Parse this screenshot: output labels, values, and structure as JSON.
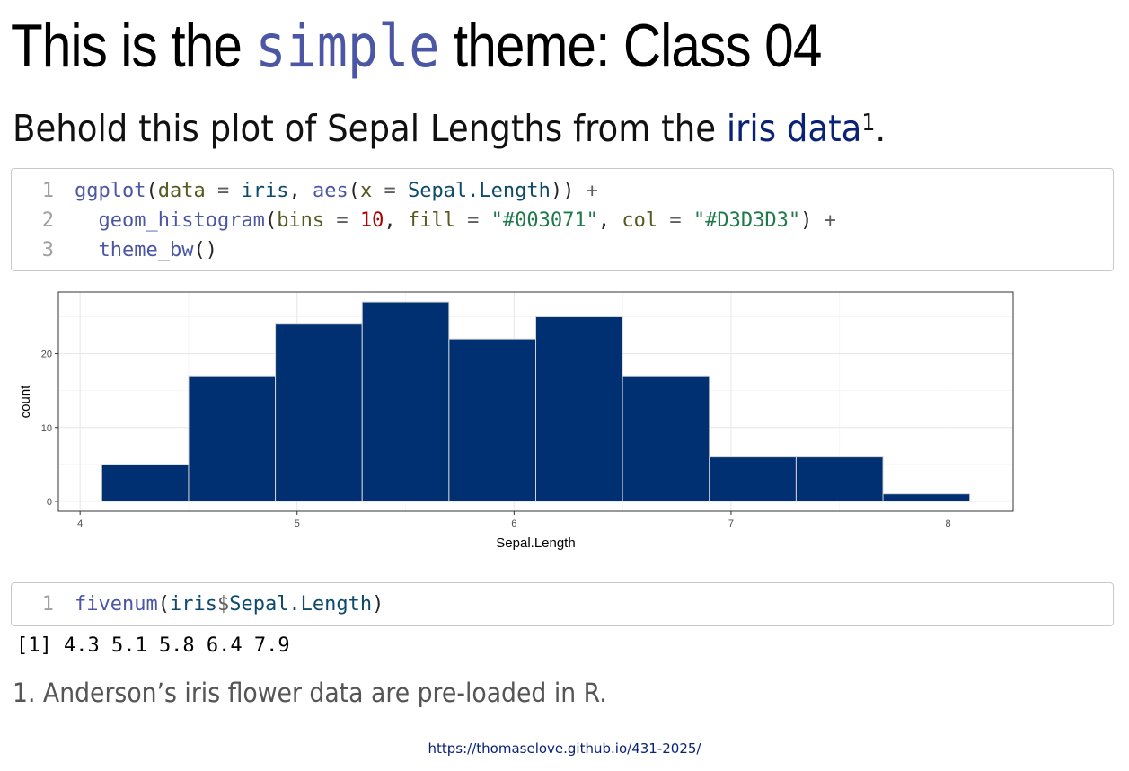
{
  "title": {
    "prefix": "This is the ",
    "code": "simple",
    "suffix": " theme: Class 04"
  },
  "subtitle": {
    "text": "Behold this plot of Sepal Lengths from the ",
    "link": "iris data",
    "footnote_ref": "1",
    "end": "."
  },
  "code_block_1": {
    "lines": [
      {
        "num": "1",
        "tokens": [
          {
            "t": "fn",
            "v": "ggplot"
          },
          {
            "t": "pun",
            "v": "("
          },
          {
            "t": "arg",
            "v": "data"
          },
          {
            "t": "op",
            "v": " = "
          },
          {
            "t": "id",
            "v": "iris"
          },
          {
            "t": "pun",
            "v": ", "
          },
          {
            "t": "fn",
            "v": "aes"
          },
          {
            "t": "pun",
            "v": "("
          },
          {
            "t": "arg",
            "v": "x"
          },
          {
            "t": "op",
            "v": " = "
          },
          {
            "t": "id",
            "v": "Sepal.Length"
          },
          {
            "t": "pun",
            "v": ")) "
          },
          {
            "t": "op",
            "v": "+"
          }
        ]
      },
      {
        "num": "2",
        "tokens": [
          {
            "t": "pun",
            "v": "  "
          },
          {
            "t": "fn",
            "v": "geom_histogram"
          },
          {
            "t": "pun",
            "v": "("
          },
          {
            "t": "arg",
            "v": "bins"
          },
          {
            "t": "op",
            "v": " = "
          },
          {
            "t": "num",
            "v": "10"
          },
          {
            "t": "pun",
            "v": ", "
          },
          {
            "t": "arg",
            "v": "fill"
          },
          {
            "t": "op",
            "v": " = "
          },
          {
            "t": "str",
            "v": "\"#003071\""
          },
          {
            "t": "pun",
            "v": ", "
          },
          {
            "t": "arg",
            "v": "col"
          },
          {
            "t": "op",
            "v": " = "
          },
          {
            "t": "str",
            "v": "\"#D3D3D3\""
          },
          {
            "t": "pun",
            "v": ") "
          },
          {
            "t": "op",
            "v": "+"
          }
        ]
      },
      {
        "num": "3",
        "tokens": [
          {
            "t": "pun",
            "v": "  "
          },
          {
            "t": "fn",
            "v": "theme_bw"
          },
          {
            "t": "pun",
            "v": "()"
          }
        ]
      }
    ]
  },
  "code_block_2": {
    "lines": [
      {
        "num": "1",
        "tokens": [
          {
            "t": "fn",
            "v": "fivenum"
          },
          {
            "t": "pun",
            "v": "("
          },
          {
            "t": "id",
            "v": "iris"
          },
          {
            "t": "op",
            "v": "$"
          },
          {
            "t": "id",
            "v": "Sepal.Length"
          },
          {
            "t": "pun",
            "v": ")"
          }
        ]
      }
    ]
  },
  "output": "[1] 4.3 5.1 5.8 6.4 7.9",
  "footnote": "1. Anderson’s iris flower data are pre-loaded in R.",
  "footer_url": "https://thomaselove.github.io/431-2025/",
  "colors": {
    "bar_fill": "#003071",
    "bar_outline": "#D3D3D3",
    "code_function": "#4b57a5",
    "link": "#0a2275"
  },
  "chart_data": {
    "type": "bar",
    "title": "",
    "xlabel": "Sepal.Length",
    "ylabel": "count",
    "bin_edges": [
      4.1,
      4.5,
      4.9,
      5.3,
      5.7,
      6.1,
      6.5,
      6.9,
      7.3,
      7.7,
      8.1
    ],
    "values": [
      5,
      17,
      24,
      27,
      22,
      25,
      17,
      6,
      6,
      1
    ],
    "xlim": [
      3.9,
      8.3
    ],
    "ylim": [
      -1.35,
      28.35
    ],
    "x_ticks": [
      4,
      5,
      6,
      7,
      8
    ],
    "x_tick_labels": [
      "4",
      "5",
      "6",
      "7",
      "8"
    ],
    "y_ticks": [
      0,
      10,
      20
    ],
    "y_tick_labels": [
      "0",
      "10",
      "20"
    ],
    "grid": true,
    "legend": "none"
  }
}
